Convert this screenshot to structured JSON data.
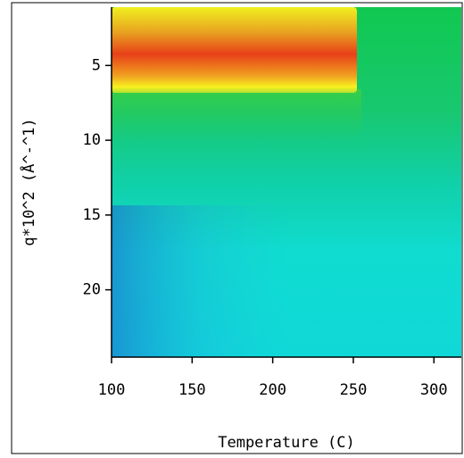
{
  "chart_data": {
    "type": "heatmap",
    "xlabel": "Temperature (C)",
    "ylabel": "q*10^2 (Å^-^1)",
    "xlim": [
      100,
      317
    ],
    "xticks": [
      100,
      150,
      200,
      250,
      300
    ],
    "ylim": [
      24.5,
      1.1
    ],
    "yticks": [
      5,
      10,
      15,
      20
    ]
  }
}
